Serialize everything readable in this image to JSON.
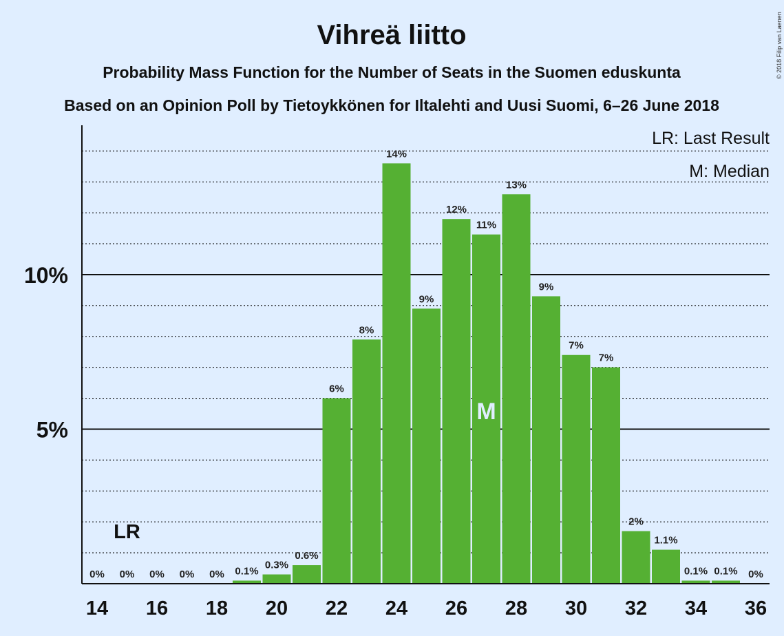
{
  "header": {
    "title": "Vihreä liitto",
    "subtitle1": "Probability Mass Function for the Number of Seats in the Suomen eduskunta",
    "subtitle2": "Based on an Opinion Poll by Tietoykkönen for Iltalehti and Uusi Suomi, 6–26 June 2018",
    "copyright": "© 2018 Filip van Laenen"
  },
  "legend": {
    "lr": "LR: Last Result",
    "median": "M: Median"
  },
  "markers": {
    "lr_label": "LR",
    "lr_seat": 15,
    "median_label": "M",
    "median_seat": 27
  },
  "colors": {
    "background": "#e0eeff",
    "bar": "#55b033"
  },
  "chart_data": {
    "type": "bar",
    "title": "Vihreä liitto",
    "categories": [
      14,
      15,
      16,
      17,
      18,
      19,
      20,
      21,
      22,
      23,
      24,
      25,
      26,
      27,
      28,
      29,
      30,
      31,
      32,
      33,
      34,
      35,
      36
    ],
    "values": [
      0,
      0,
      0,
      0,
      0,
      0.1,
      0.3,
      0.6,
      6.0,
      7.9,
      13.6,
      8.9,
      11.8,
      11.3,
      12.6,
      9.3,
      7.4,
      7.0,
      1.7,
      1.1,
      0.1,
      0.1,
      0
    ],
    "data_labels": [
      "0%",
      "0%",
      "0%",
      "0%",
      "0%",
      "0.1%",
      "0.3%",
      "0.6%",
      "6%",
      "8%",
      "14%",
      "9%",
      "12%",
      "11%",
      "13%",
      "9%",
      "7%",
      "7%",
      "2%",
      "1.1%",
      "0.1%",
      "0.1%",
      "0%"
    ],
    "x_tick_labels": [
      "14",
      "16",
      "18",
      "20",
      "22",
      "24",
      "26",
      "28",
      "30",
      "32",
      "34",
      "36"
    ],
    "y_tick_labels": [
      "5%",
      "10%"
    ],
    "y_ticks": [
      5,
      10
    ],
    "ylim": [
      0,
      14.8
    ],
    "grid": "dotted horizontal every 1%, solid at 5% and 10%",
    "legend_position": "top-right"
  }
}
